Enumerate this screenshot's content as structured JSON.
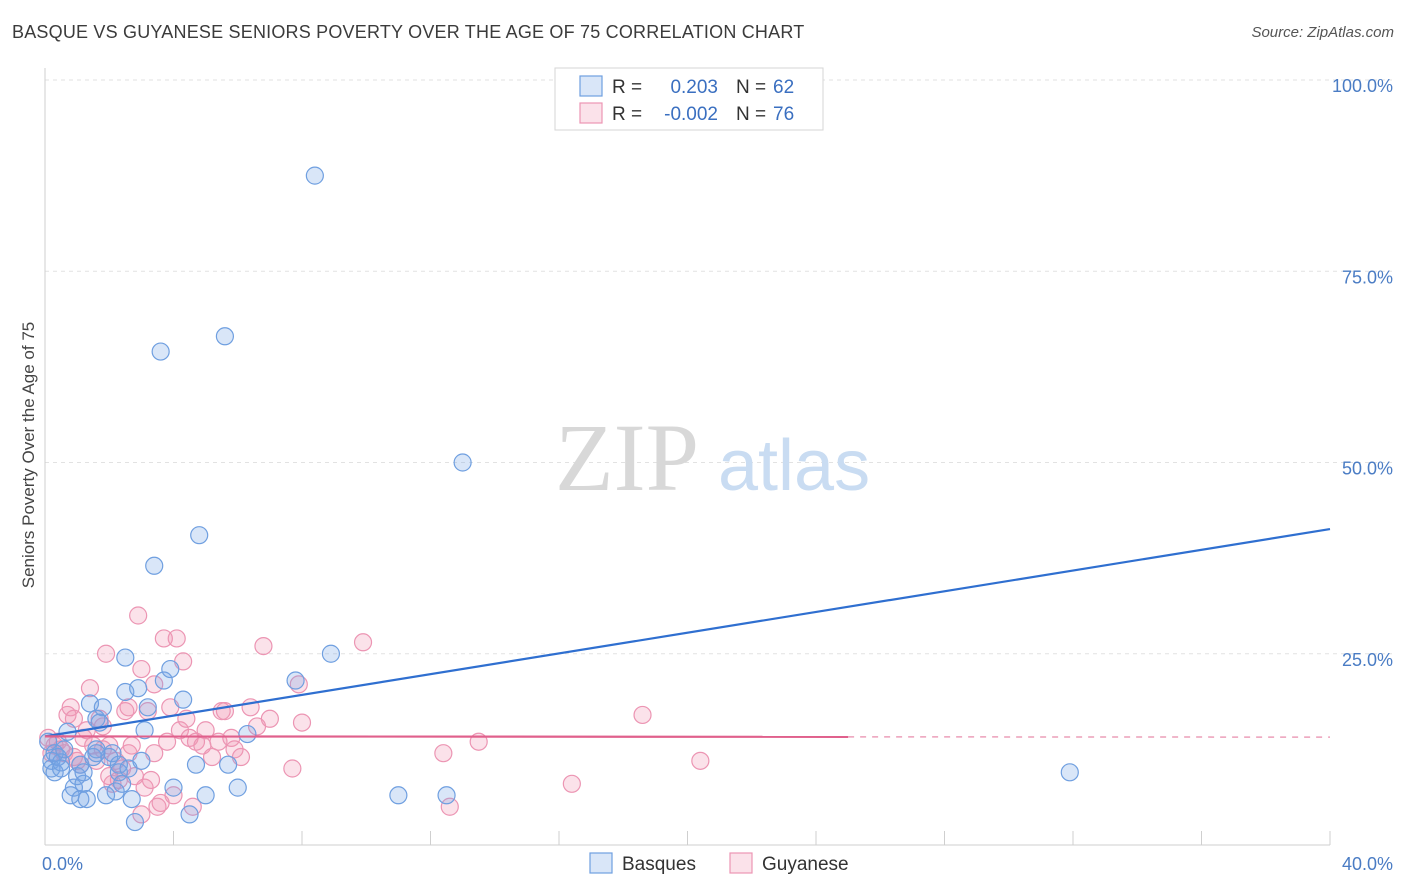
{
  "title": "BASQUE VS GUYANESE SENIORS POVERTY OVER THE AGE OF 75 CORRELATION CHART",
  "source": "Source: ZipAtlas.com",
  "watermark": {
    "zip": "ZIP",
    "atlas": "atlas"
  },
  "colors": {
    "basques_fill": "rgba(120,165,230,0.28)",
    "basques_stroke": "#6f9fe0",
    "basques_line": "#2f6fd0",
    "guyanese_fill": "rgba(240,150,180,0.28)",
    "guyanese_stroke": "#ec95b3",
    "guyanese_line": "#e0608c"
  },
  "chart_data": {
    "type": "scatter",
    "title": "BASQUE VS GUYANESE SENIORS POVERTY OVER THE AGE OF 75 CORRELATION CHART",
    "xlabel": "",
    "ylabel": "Seniors Poverty Over the Age of 75",
    "xlim": [
      0,
      40
    ],
    "ylim": [
      0,
      100
    ],
    "x_tick_labels": [
      {
        "value": 0,
        "label": "0.0%"
      },
      {
        "value": 40,
        "label": "40.0%"
      }
    ],
    "y_tick_labels": [
      {
        "value": 25,
        "label": "25.0%"
      },
      {
        "value": 50,
        "label": "50.0%"
      },
      {
        "value": 75,
        "label": "75.0%"
      },
      {
        "value": 100,
        "label": "100.0%"
      }
    ],
    "grid": true,
    "legend_position": "top-center",
    "legend": [
      {
        "series": "Basques",
        "r_label": "R =",
        "r_value": "0.203",
        "n_label": "N =",
        "n_value": "62"
      },
      {
        "series": "Guyanese",
        "r_label": "R =",
        "r_value": "-0.002",
        "n_label": "N =",
        "n_value": "76"
      }
    ],
    "series": [
      {
        "name": "Basques",
        "trend": {
          "x0": 0,
          "y0": 14.2,
          "x1": 40,
          "y1": 41.3,
          "dashed_from": null
        },
        "points": [
          [
            0.1,
            13.5
          ],
          [
            0.2,
            11.0
          ],
          [
            0.2,
            10.0
          ],
          [
            0.3,
            9.5
          ],
          [
            0.3,
            12.0
          ],
          [
            0.4,
            11.5
          ],
          [
            0.5,
            10.8
          ],
          [
            0.6,
            12.5
          ],
          [
            0.7,
            14.8
          ],
          [
            0.8,
            6.5
          ],
          [
            0.9,
            7.5
          ],
          [
            1.0,
            9.0
          ],
          [
            1.1,
            6.0
          ],
          [
            1.1,
            10.5
          ],
          [
            1.2,
            8.0
          ],
          [
            1.2,
            9.5
          ],
          [
            1.3,
            6.0
          ],
          [
            1.4,
            18.5
          ],
          [
            1.5,
            11.5
          ],
          [
            1.6,
            12.5
          ],
          [
            1.6,
            16.5
          ],
          [
            1.7,
            16.0
          ],
          [
            1.8,
            18.0
          ],
          [
            1.9,
            6.5
          ],
          [
            2.0,
            11.5
          ],
          [
            2.1,
            12.0
          ],
          [
            2.2,
            7.0
          ],
          [
            2.3,
            10.5
          ],
          [
            2.3,
            9.5
          ],
          [
            2.4,
            8.0
          ],
          [
            2.5,
            24.5
          ],
          [
            2.5,
            20.0
          ],
          [
            2.6,
            10.0
          ],
          [
            2.7,
            6.0
          ],
          [
            2.8,
            3.0
          ],
          [
            2.9,
            20.5
          ],
          [
            3.0,
            11.0
          ],
          [
            3.1,
            15.0
          ],
          [
            3.2,
            18.0
          ],
          [
            3.4,
            36.5
          ],
          [
            3.6,
            64.5
          ],
          [
            3.7,
            21.5
          ],
          [
            3.9,
            23.0
          ],
          [
            4.0,
            7.5
          ],
          [
            4.3,
            19.0
          ],
          [
            4.5,
            4.0
          ],
          [
            4.7,
            10.5
          ],
          [
            4.8,
            40.5
          ],
          [
            5.0,
            6.5
          ],
          [
            5.7,
            10.5
          ],
          [
            6.0,
            7.5
          ],
          [
            6.3,
            14.5
          ],
          [
            5.6,
            66.5
          ],
          [
            7.8,
            21.5
          ],
          [
            8.4,
            87.5
          ],
          [
            8.9,
            25.0
          ],
          [
            11.0,
            6.5
          ],
          [
            12.5,
            6.5
          ],
          [
            13.0,
            50.0
          ],
          [
            31.9,
            9.5
          ],
          [
            1.6,
            12.0
          ],
          [
            0.5,
            10.0
          ]
        ]
      },
      {
        "name": "Guyanese",
        "trend": {
          "x0": 0,
          "y0": 14.2,
          "x1": 40,
          "y1": 14.1,
          "dashed_from": 25
        },
        "points": [
          [
            0.1,
            14.0
          ],
          [
            0.2,
            12.0
          ],
          [
            0.3,
            13.0
          ],
          [
            0.4,
            13.5
          ],
          [
            0.5,
            12.5
          ],
          [
            0.6,
            12.0
          ],
          [
            0.7,
            17.0
          ],
          [
            0.8,
            18.0
          ],
          [
            0.9,
            16.5
          ],
          [
            1.0,
            11.0
          ],
          [
            1.1,
            10.5
          ],
          [
            1.2,
            14.0
          ],
          [
            1.3,
            15.0
          ],
          [
            1.4,
            20.5
          ],
          [
            1.5,
            13.0
          ],
          [
            1.6,
            11.0
          ],
          [
            1.7,
            16.5
          ],
          [
            1.8,
            15.5
          ],
          [
            1.9,
            25.0
          ],
          [
            2.0,
            13.0
          ],
          [
            2.1,
            8.0
          ],
          [
            2.2,
            11.0
          ],
          [
            2.3,
            8.5
          ],
          [
            2.4,
            10.0
          ],
          [
            2.5,
            17.5
          ],
          [
            2.6,
            18.0
          ],
          [
            2.6,
            12.0
          ],
          [
            2.7,
            13.0
          ],
          [
            2.8,
            9.0
          ],
          [
            2.9,
            30.0
          ],
          [
            3.0,
            23.0
          ],
          [
            3.1,
            7.5
          ],
          [
            3.2,
            17.5
          ],
          [
            3.3,
            8.5
          ],
          [
            3.4,
            12.0
          ],
          [
            3.4,
            21.0
          ],
          [
            3.5,
            5.0
          ],
          [
            3.6,
            5.5
          ],
          [
            3.7,
            27.0
          ],
          [
            3.8,
            13.5
          ],
          [
            3.9,
            18.0
          ],
          [
            4.0,
            6.5
          ],
          [
            4.1,
            27.0
          ],
          [
            4.2,
            15.0
          ],
          [
            4.3,
            24.0
          ],
          [
            4.4,
            16.5
          ],
          [
            4.5,
            14.0
          ],
          [
            4.6,
            5.0
          ],
          [
            4.7,
            13.5
          ],
          [
            4.9,
            13.0
          ],
          [
            5.0,
            15.0
          ],
          [
            5.2,
            11.5
          ],
          [
            5.4,
            13.5
          ],
          [
            5.5,
            17.5
          ],
          [
            5.6,
            17.5
          ],
          [
            5.8,
            14.0
          ],
          [
            5.9,
            12.5
          ],
          [
            6.1,
            11.5
          ],
          [
            6.4,
            18.0
          ],
          [
            6.6,
            15.5
          ],
          [
            6.8,
            26.0
          ],
          [
            7.0,
            16.5
          ],
          [
            7.7,
            10.0
          ],
          [
            7.9,
            21.0
          ],
          [
            8.0,
            16.0
          ],
          [
            9.9,
            26.5
          ],
          [
            12.4,
            12.0
          ],
          [
            12.6,
            5.0
          ],
          [
            13.5,
            13.5
          ],
          [
            16.4,
            8.0
          ],
          [
            18.6,
            17.0
          ],
          [
            20.4,
            11.0
          ],
          [
            3.0,
            4.0
          ],
          [
            2.0,
            9.0
          ],
          [
            0.9,
            11.5
          ],
          [
            1.8,
            12.5
          ]
        ]
      }
    ]
  },
  "bottom_legend": [
    {
      "label": "Basques"
    },
    {
      "label": "Guyanese"
    }
  ]
}
